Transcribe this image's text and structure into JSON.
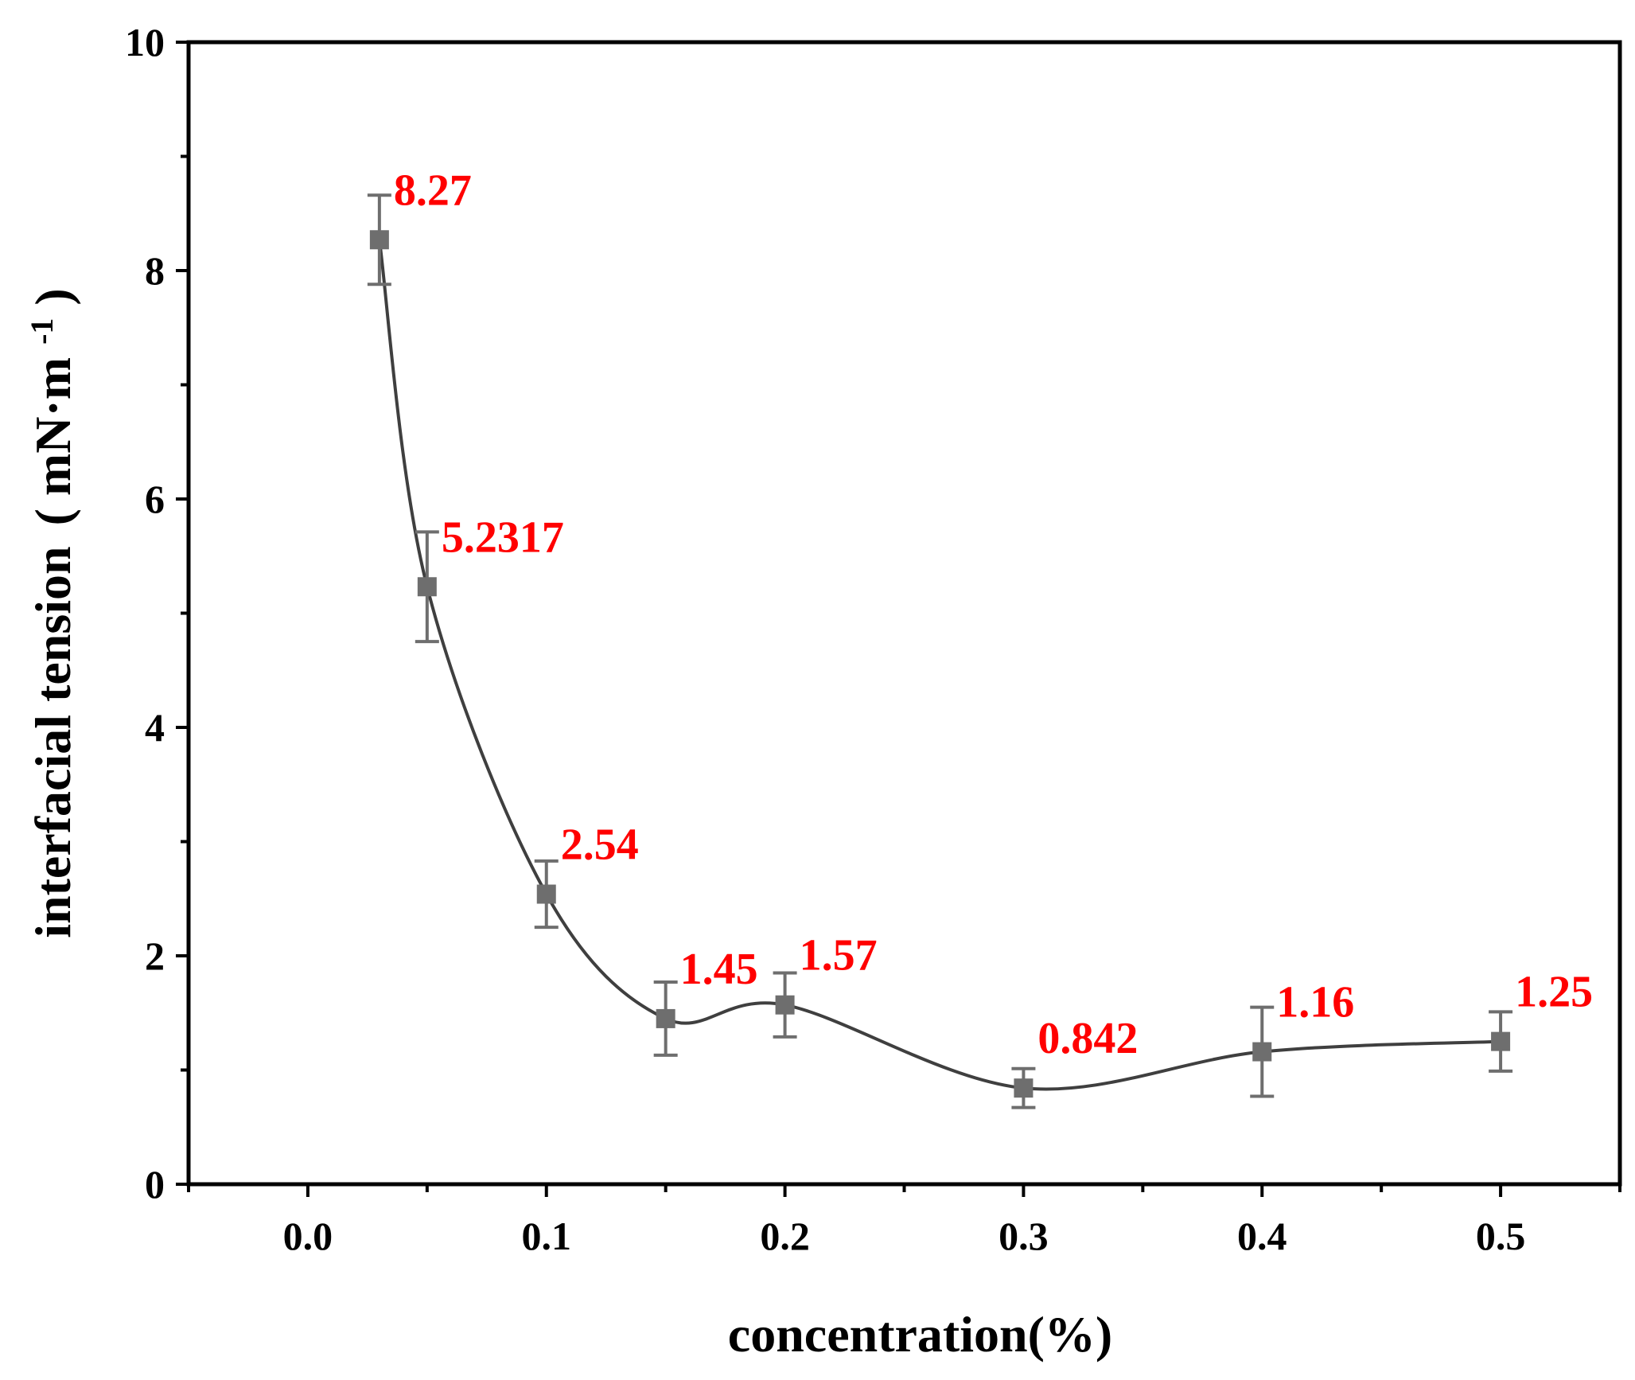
{
  "chart_data": {
    "type": "line",
    "title": "",
    "xlabel": "concentration(%)",
    "ylabel": "interfacial tension",
    "ylabel_unit": {
      "open": "(",
      "base": "mN·m",
      "sup": "-1",
      "close": ")"
    },
    "xlim": [
      -0.05,
      0.55
    ],
    "ylim": [
      0,
      10
    ],
    "x_ticks": [
      0.0,
      0.1,
      0.2,
      0.3,
      0.4,
      0.5
    ],
    "x_tick_labels": [
      "0.0",
      "0.1",
      "0.2",
      "0.3",
      "0.4",
      "0.5"
    ],
    "x_minor_ticks": [
      -0.05,
      0.05,
      0.15,
      0.25,
      0.35,
      0.45,
      0.55
    ],
    "y_ticks": [
      0,
      2,
      4,
      6,
      8,
      10
    ],
    "y_tick_labels": [
      "0",
      "2",
      "4",
      "6",
      "8",
      "10"
    ],
    "y_minor_ticks": [
      1,
      3,
      5,
      7,
      9
    ],
    "grid": false,
    "legend": "none",
    "series": [
      {
        "x": [
          0.03,
          0.05,
          0.1,
          0.15,
          0.2,
          0.3,
          0.4,
          0.5
        ],
        "y": [
          8.27,
          5.2317,
          2.54,
          1.45,
          1.57,
          0.842,
          1.16,
          1.25
        ],
        "y_err": [
          0.39,
          0.48,
          0.29,
          0.32,
          0.28,
          0.17,
          0.39,
          0.26
        ],
        "labels": [
          "8.27",
          "5.2317",
          "2.54",
          "1.45",
          "1.57",
          "0.842",
          "1.16",
          "1.25"
        ],
        "marker": "square",
        "line_style": "smooth"
      }
    ],
    "colors": {
      "line": "#3f3f3f",
      "marker": "#6e6e6e",
      "error_bar": "#6e6e6e",
      "data_label": "#ff0000",
      "axis": "#000000"
    }
  }
}
